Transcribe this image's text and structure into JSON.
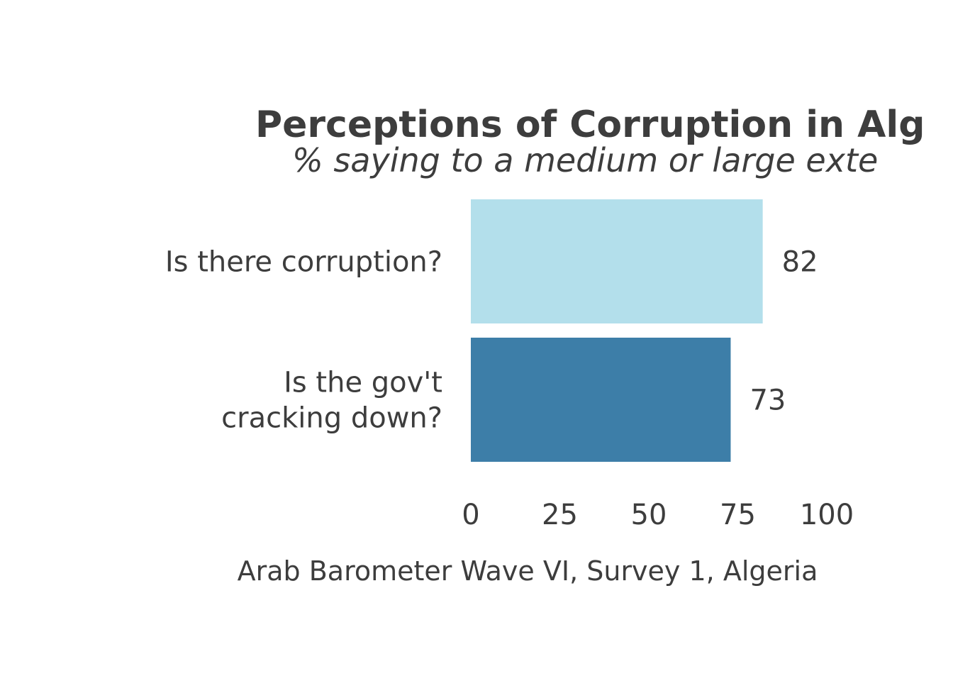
{
  "chart_data": {
    "type": "bar",
    "orientation": "horizontal",
    "title": "Perceptions of Corruption in Alg",
    "subtitle": "% saying to a medium or large exte",
    "categories": [
      [
        "Is there corruption?"
      ],
      [
        "Is the gov't",
        "cracking down?"
      ]
    ],
    "values": [
      82,
      73
    ],
    "value_labels": [
      "82",
      "73"
    ],
    "bar_colors": [
      "#b3dfeb",
      "#3d7ea8"
    ],
    "xlim": [
      0,
      100
    ],
    "x_ticks": [
      0,
      25,
      50,
      75,
      100
    ],
    "x_tick_labels": [
      "0",
      "25",
      "50",
      "75",
      "100"
    ],
    "caption": "Arab Barometer Wave VI, Survey 1, Algeria",
    "grid": false,
    "legend": "none"
  }
}
